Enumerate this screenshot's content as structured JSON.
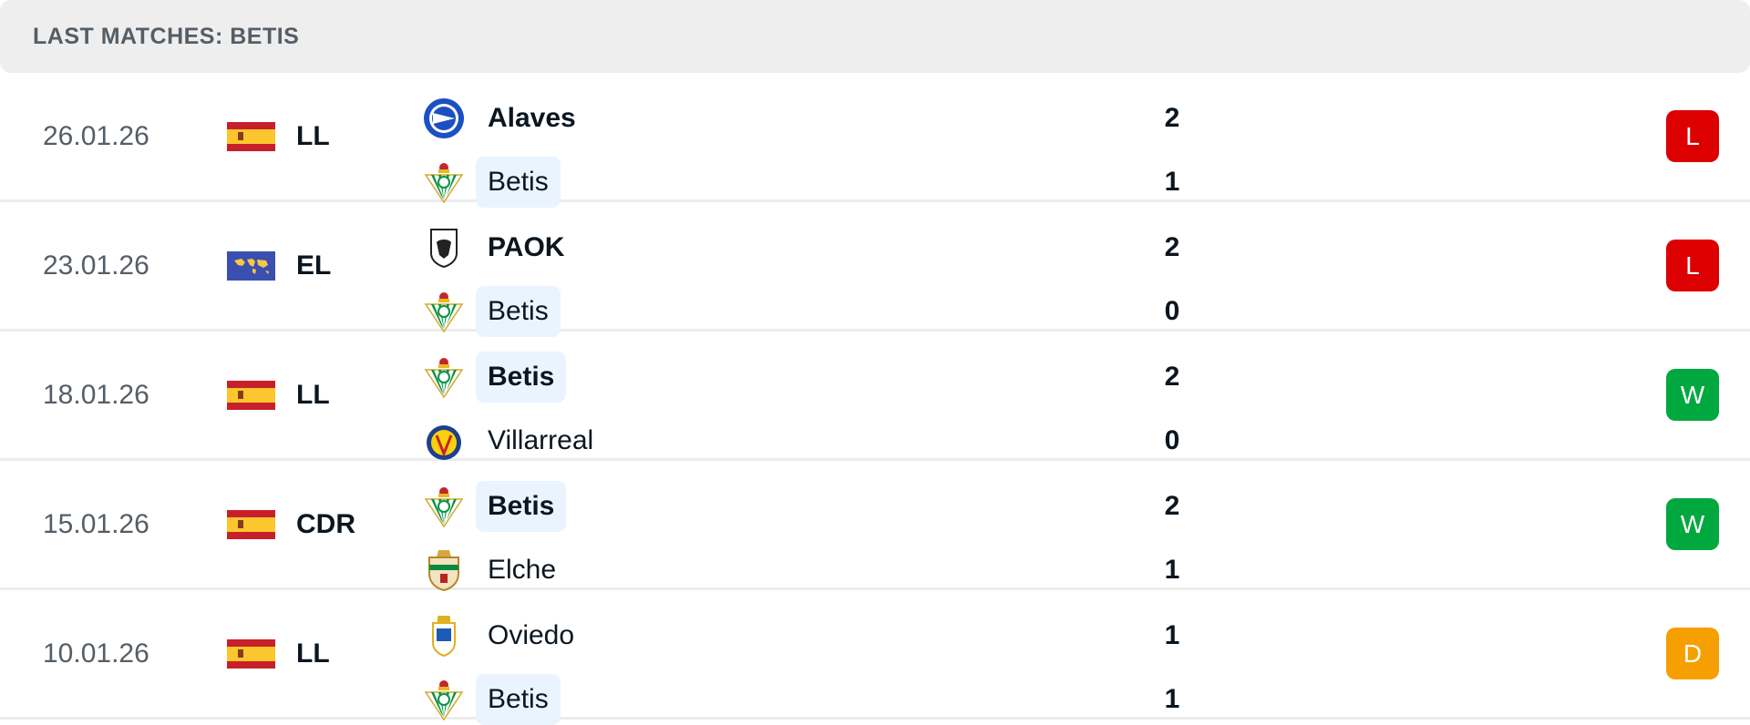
{
  "header": {
    "title": "LAST MATCHES: BETIS"
  },
  "colors": {
    "loss": "#dc0000",
    "win": "#00a83f",
    "draw": "#f5a000",
    "highlight": "#eaf4fe"
  },
  "matches": [
    {
      "date": "26.01.26",
      "flag": "spain-flag",
      "league": "LL",
      "home": {
        "name": "Alaves",
        "logo": "alaves-crest",
        "score": "2",
        "bold": true,
        "highlight": false
      },
      "away": {
        "name": "Betis",
        "logo": "betis-crest",
        "score": "1",
        "bold": false,
        "highlight": true
      },
      "result": "L",
      "result_type": "loss"
    },
    {
      "date": "23.01.26",
      "flag": "world-flag",
      "league": "EL",
      "home": {
        "name": "PAOK",
        "logo": "paok-crest",
        "score": "2",
        "bold": true,
        "highlight": false
      },
      "away": {
        "name": "Betis",
        "logo": "betis-crest",
        "score": "0",
        "bold": false,
        "highlight": true
      },
      "result": "L",
      "result_type": "loss"
    },
    {
      "date": "18.01.26",
      "flag": "spain-flag",
      "league": "LL",
      "home": {
        "name": "Betis",
        "logo": "betis-crest",
        "score": "2",
        "bold": true,
        "highlight": true
      },
      "away": {
        "name": "Villarreal",
        "logo": "villarreal-crest",
        "score": "0",
        "bold": false,
        "highlight": false
      },
      "result": "W",
      "result_type": "win"
    },
    {
      "date": "15.01.26",
      "flag": "spain-flag",
      "league": "CDR",
      "home": {
        "name": "Betis",
        "logo": "betis-crest",
        "score": "2",
        "bold": true,
        "highlight": true
      },
      "away": {
        "name": "Elche",
        "logo": "elche-crest",
        "score": "1",
        "bold": false,
        "highlight": false
      },
      "result": "W",
      "result_type": "win"
    },
    {
      "date": "10.01.26",
      "flag": "spain-flag",
      "league": "LL",
      "home": {
        "name": "Oviedo",
        "logo": "oviedo-crest",
        "score": "1",
        "bold": false,
        "highlight": false
      },
      "away": {
        "name": "Betis",
        "logo": "betis-crest",
        "score": "1",
        "bold": false,
        "highlight": true
      },
      "result": "D",
      "result_type": "draw"
    }
  ]
}
